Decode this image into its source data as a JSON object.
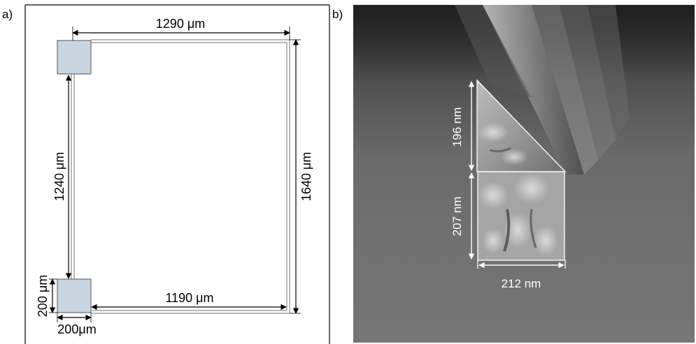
{
  "panel_a": {
    "label": "a)",
    "dims": {
      "top_width": "1290 μm",
      "right_height": "1640 μm",
      "left_height": "1240 μm",
      "bottom_width": "1190 μm",
      "pad_height": "200 μm",
      "pad_width": "200μm"
    },
    "colors": {
      "pad_fill": "#c9d5e0",
      "wire": "#9a9a9a",
      "frame": "#000000"
    }
  },
  "panel_b": {
    "label": "b)",
    "dims": {
      "upper_height": "196 nm",
      "lower_height": "207 nm",
      "base_width": "212 nm"
    },
    "colors": {
      "annotation": "#ffffff"
    }
  }
}
